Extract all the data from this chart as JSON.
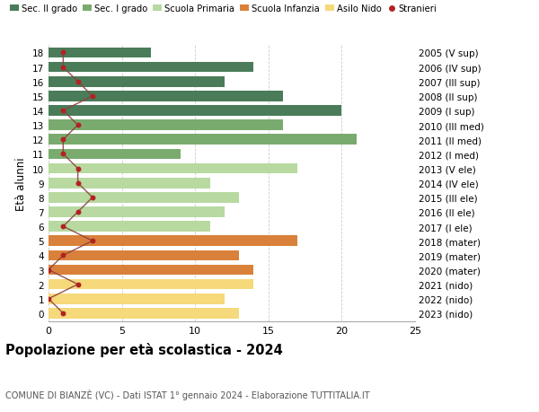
{
  "ages": [
    18,
    17,
    16,
    15,
    14,
    13,
    12,
    11,
    10,
    9,
    8,
    7,
    6,
    5,
    4,
    3,
    2,
    1,
    0
  ],
  "anni_nascita": [
    "2005 (V sup)",
    "2006 (IV sup)",
    "2007 (III sup)",
    "2008 (II sup)",
    "2009 (I sup)",
    "2010 (III med)",
    "2011 (II med)",
    "2012 (I med)",
    "2013 (V ele)",
    "2014 (IV ele)",
    "2015 (III ele)",
    "2016 (II ele)",
    "2017 (I ele)",
    "2018 (mater)",
    "2019 (mater)",
    "2020 (mater)",
    "2021 (nido)",
    "2022 (nido)",
    "2023 (nido)"
  ],
  "bar_values": [
    7,
    14,
    12,
    16,
    20,
    16,
    21,
    9,
    17,
    11,
    13,
    12,
    11,
    17,
    13,
    14,
    14,
    12,
    13
  ],
  "bar_colors": [
    "#4a7c59",
    "#4a7c59",
    "#4a7c59",
    "#4a7c59",
    "#4a7c59",
    "#7aab6e",
    "#7aab6e",
    "#7aab6e",
    "#b8d9a0",
    "#b8d9a0",
    "#b8d9a0",
    "#b8d9a0",
    "#b8d9a0",
    "#d9813a",
    "#d9813a",
    "#d9813a",
    "#f5d97a",
    "#f5d97a",
    "#f5d97a"
  ],
  "stranieri_values": [
    1,
    1,
    2,
    3,
    1,
    2,
    1,
    1,
    2,
    2,
    3,
    2,
    1,
    3,
    1,
    0,
    2,
    0,
    1
  ],
  "title": "Popolazione per età scolastica - 2024",
  "subtitle": "COMUNE DI BIANZÈ (VC) - Dati ISTAT 1° gennaio 2024 - Elaborazione TUTTITALIA.IT",
  "ylabel_left": "Età alunni",
  "xlim": [
    0,
    25
  ],
  "legend_labels": [
    "Sec. II grado",
    "Sec. I grado",
    "Scuola Primaria",
    "Scuola Infanzia",
    "Asilo Nido",
    "Stranieri"
  ],
  "legend_colors": [
    "#4a7c59",
    "#7aab6e",
    "#b8d9a0",
    "#d9813a",
    "#f5d97a",
    "#b22222"
  ],
  "stranieri_color": "#b22222",
  "stranieri_line_color": "#8b4040",
  "background_color": "#ffffff",
  "bar_height": 0.72,
  "grid_color": "#cccccc"
}
